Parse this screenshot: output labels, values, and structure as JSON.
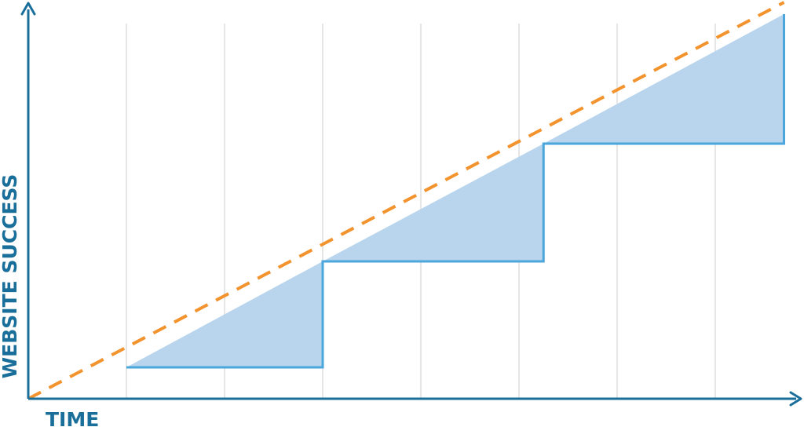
{
  "chart_data": {
    "type": "line",
    "title": "",
    "xlabel": "TIME",
    "ylabel": "WEBSITE SUCCESS",
    "xlim": [
      0,
      8
    ],
    "ylim": [
      0,
      10
    ],
    "grid": true,
    "grid_lines": "vertical",
    "series": [
      {
        "style": "step",
        "fill": "area-to-trend",
        "points": [
          {
            "x": 1,
            "y": 0.8
          },
          {
            "x": 3,
            "y": 0.8
          },
          {
            "x": 3,
            "y": 3.5
          },
          {
            "x": 5.25,
            "y": 3.5
          },
          {
            "x": 5.25,
            "y": 6.5
          },
          {
            "x": 7.7,
            "y": 6.5
          },
          {
            "x": 7.7,
            "y": 9.8
          }
        ]
      },
      {
        "style": "dashed",
        "points": [
          {
            "x": 0,
            "y": 0
          },
          {
            "x": 7.7,
            "y": 10.1
          }
        ]
      }
    ],
    "fill_polygons": [
      [
        {
          "x": 1,
          "y": 0.8
        },
        {
          "x": 3,
          "y": 3.5
        },
        {
          "x": 3,
          "y": 0.8
        }
      ],
      [
        {
          "x": 3,
          "y": 3.5
        },
        {
          "x": 5.25,
          "y": 6.5
        },
        {
          "x": 5.25,
          "y": 3.5
        }
      ],
      [
        {
          "x": 5.25,
          "y": 6.5
        },
        {
          "x": 7.7,
          "y": 9.8
        },
        {
          "x": 7.7,
          "y": 6.5
        }
      ]
    ],
    "gridlines_x": [
      1,
      2,
      3,
      4,
      5,
      6,
      7
    ],
    "colors": {
      "axis": "#1a6e9a",
      "step_line": "#4ba6dc",
      "fill": "#b8d5ed",
      "trend": "#f2932e",
      "grid": "#e6e6e6"
    }
  }
}
